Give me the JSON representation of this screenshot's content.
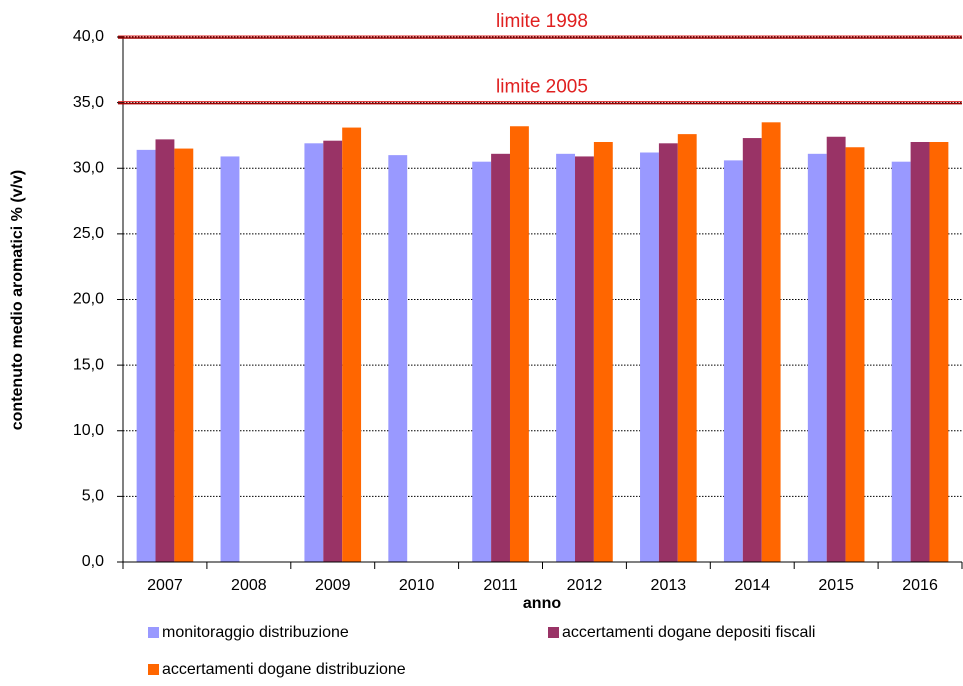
{
  "chart_data": {
    "type": "bar",
    "y_label": "contenuto medio aromatici % (v/v)",
    "x_label": "anno",
    "categories": [
      "2007",
      "2008",
      "2009",
      "2010",
      "2011",
      "2012",
      "2013",
      "2014",
      "2015",
      "2016"
    ],
    "series": [
      {
        "name": "monitoraggio distribuzione",
        "color": "#9999ff",
        "values": [
          31.4,
          30.9,
          31.9,
          31.0,
          30.5,
          31.1,
          31.2,
          30.6,
          31.1,
          30.5
        ]
      },
      {
        "name": "accertamenti dogane depositi fiscali",
        "color": "#993366",
        "values": [
          32.2,
          null,
          32.1,
          null,
          31.1,
          30.9,
          31.9,
          32.3,
          32.4,
          32.0
        ]
      },
      {
        "name": "accertamenti dogane distribuzione",
        "color": "#ff6600",
        "values": [
          31.5,
          null,
          33.1,
          null,
          33.2,
          32.0,
          32.6,
          33.5,
          31.6,
          32.0
        ]
      }
    ],
    "ylim": [
      0,
      40
    ],
    "yticks": [
      {
        "value": 0,
        "label": "0,0"
      },
      {
        "value": 5,
        "label": "5,0"
      },
      {
        "value": 10,
        "label": "10,0"
      },
      {
        "value": 15,
        "label": "15,0"
      },
      {
        "value": 20,
        "label": "20,0"
      },
      {
        "value": 25,
        "label": "25,0"
      },
      {
        "value": 30,
        "label": "30,0"
      },
      {
        "value": 35,
        "label": "35,0"
      },
      {
        "value": 40,
        "label": "40,0"
      }
    ],
    "grid": true,
    "reference_lines": [
      {
        "value": 40,
        "label": "limite 1998",
        "color": "#e02020"
      },
      {
        "value": 35,
        "label": "limite 2005",
        "color": "#e02020"
      }
    ],
    "legend": "bottom"
  }
}
